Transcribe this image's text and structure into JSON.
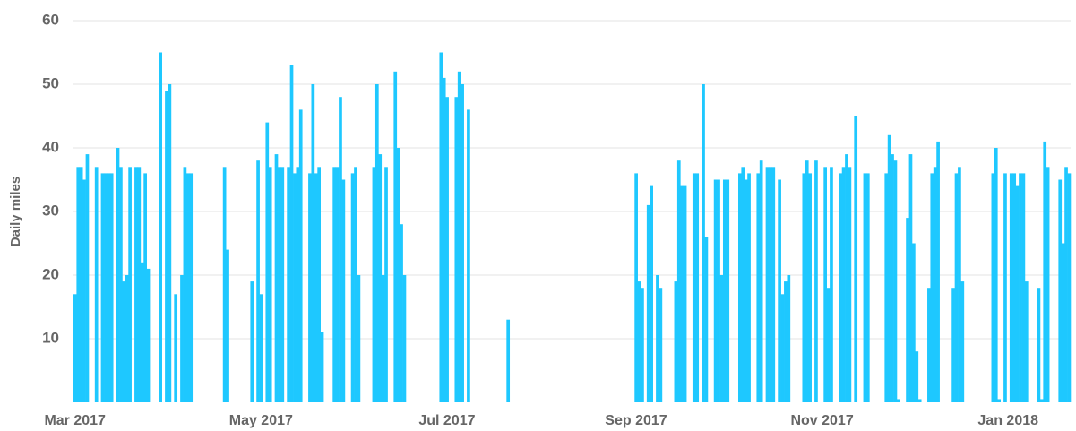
{
  "chart_data": {
    "type": "bar",
    "y_label": "Daily miles",
    "color": "#1ec8ff",
    "grid": true,
    "ylim": [
      0,
      60
    ],
    "yticks": [
      10,
      20,
      30,
      40,
      50,
      60
    ],
    "categories": [
      "Mar 2017",
      null,
      null,
      null,
      null,
      null,
      null,
      null,
      null,
      null,
      null,
      null,
      null,
      null,
      null,
      null,
      null,
      null,
      null,
      null,
      null,
      null,
      null,
      null,
      null,
      null,
      null,
      null,
      null,
      null,
      null,
      null,
      null,
      null,
      null,
      null,
      null,
      null,
      null,
      null,
      null,
      null,
      null,
      null,
      null,
      null,
      null,
      null,
      null,
      null,
      null,
      null,
      null,
      null,
      null,
      null,
      null,
      null,
      null,
      null,
      null,
      "May 2017",
      null,
      null,
      null,
      null,
      null,
      null,
      null,
      null,
      null,
      null,
      null,
      null,
      null,
      null,
      null,
      null,
      null,
      null,
      null,
      null,
      null,
      null,
      null,
      null,
      null,
      null,
      null,
      null,
      null,
      null,
      null,
      null,
      null,
      null,
      null,
      null,
      null,
      null,
      null,
      null,
      null,
      null,
      null,
      null,
      null,
      null,
      null,
      null,
      null,
      null,
      null,
      null,
      null,
      null,
      null,
      null,
      null,
      null,
      null,
      null,
      "Jul 2017",
      null,
      null,
      null,
      null,
      null,
      null,
      null,
      null,
      null,
      null,
      null,
      null,
      null,
      null,
      null,
      null,
      null,
      null,
      null,
      null,
      null,
      null,
      null,
      null,
      null,
      null,
      null,
      null,
      null,
      null,
      null,
      null,
      null,
      null,
      null,
      null,
      null,
      null,
      null,
      null,
      null,
      null,
      null,
      null,
      null,
      null,
      null,
      null,
      null,
      null,
      null,
      null,
      null,
      null,
      null,
      null,
      null,
      null,
      null,
      null,
      null,
      "Sep 2017",
      null,
      null,
      null,
      null,
      null,
      null,
      null,
      null,
      null,
      null,
      null,
      null,
      null,
      null,
      null,
      null,
      null,
      null,
      null,
      null,
      null,
      null,
      null,
      null,
      null,
      null,
      null,
      null,
      null,
      null,
      null,
      null,
      null,
      null,
      null,
      null,
      null,
      null,
      null,
      null,
      null,
      null,
      null,
      null,
      null,
      null,
      null,
      null,
      null,
      null,
      null,
      null,
      null,
      null,
      null,
      null,
      null,
      null,
      null,
      null,
      "Nov 2017",
      null,
      null,
      null,
      null,
      null,
      null,
      null,
      null,
      null,
      null,
      null,
      null,
      null,
      null,
      null,
      null,
      null,
      null,
      null,
      null,
      null,
      null,
      null,
      null,
      null,
      null,
      null,
      null,
      null,
      null,
      null,
      null,
      null,
      null,
      null,
      null,
      null,
      null,
      null,
      null,
      null,
      null,
      null,
      null,
      null,
      null,
      null,
      null,
      null,
      null,
      null,
      null,
      null,
      null,
      null,
      null,
      null,
      null,
      null,
      null,
      "Jan 2018",
      null,
      null,
      null,
      null,
      null,
      null,
      null,
      null,
      null,
      null,
      null,
      null,
      null,
      null,
      null,
      null,
      null,
      null,
      null,
      null
    ],
    "values": [
      17,
      37,
      37,
      35,
      39,
      null,
      null,
      37,
      null,
      36,
      36,
      36,
      36,
      null,
      40,
      37,
      19,
      20,
      37,
      null,
      37,
      37,
      22,
      36,
      21,
      null,
      null,
      null,
      55,
      null,
      49,
      50,
      null,
      17,
      null,
      20,
      37,
      36,
      36,
      null,
      null,
      null,
      null,
      null,
      null,
      null,
      null,
      null,
      null,
      37,
      24,
      null,
      null,
      null,
      null,
      null,
      null,
      null,
      19,
      null,
      38,
      17,
      null,
      44,
      37,
      null,
      39,
      37,
      37,
      null,
      37,
      53,
      36,
      37,
      46,
      null,
      null,
      36,
      50,
      36,
      37,
      11,
      null,
      null,
      null,
      37,
      37,
      48,
      35,
      null,
      null,
      36,
      37,
      20,
      null,
      null,
      null,
      null,
      37,
      50,
      39,
      20,
      37,
      null,
      null,
      52,
      40,
      28,
      20,
      null,
      null,
      null,
      null,
      null,
      null,
      null,
      null,
      null,
      null,
      null,
      55,
      51,
      48,
      null,
      null,
      48,
      52,
      50,
      null,
      46,
      null,
      null,
      null,
      null,
      null,
      null,
      null,
      null,
      null,
      null,
      null,
      null,
      13,
      null,
      null,
      null,
      null,
      null,
      null,
      null,
      null,
      null,
      null,
      null,
      null,
      null,
      null,
      null,
      null,
      null,
      null,
      null,
      null,
      null,
      null,
      null,
      null,
      null,
      null,
      null,
      null,
      null,
      null,
      null,
      null,
      null,
      null,
      null,
      null,
      null,
      null,
      null,
      null,
      null,
      36,
      19,
      18,
      null,
      31,
      34,
      null,
      20,
      18,
      null,
      null,
      null,
      null,
      19,
      38,
      34,
      34,
      null,
      null,
      36,
      36,
      null,
      50,
      26,
      null,
      null,
      35,
      35,
      20,
      35,
      35,
      null,
      null,
      null,
      36,
      37,
      35,
      36,
      null,
      null,
      36,
      38,
      null,
      37,
      37,
      37,
      null,
      35,
      17,
      19,
      20,
      null,
      null,
      null,
      null,
      36,
      38,
      36,
      null,
      38,
      null,
      null,
      37,
      18,
      37,
      null,
      null,
      36,
      37,
      39,
      37,
      null,
      45,
      null,
      null,
      36,
      36,
      null,
      null,
      null,
      null,
      null,
      36,
      42,
      39,
      38,
      0.5,
      null,
      null,
      29,
      39,
      25,
      8,
      0.5,
      null,
      null,
      18,
      36,
      37,
      41,
      null,
      null,
      null,
      null,
      18,
      36,
      37,
      19,
      null,
      null,
      null,
      null,
      null,
      null,
      null,
      null,
      null,
      36,
      40,
      0.5,
      null,
      36,
      null,
      36,
      36,
      34,
      36,
      36,
      19,
      null,
      null,
      null,
      18,
      0.5,
      41,
      37,
      null,
      null,
      null,
      35,
      25,
      37,
      36
    ]
  }
}
